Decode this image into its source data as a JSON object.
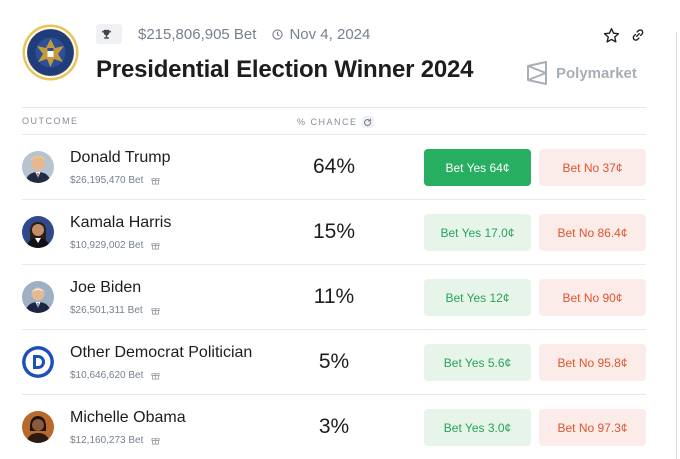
{
  "market": {
    "volume": "$215,806,905 Bet",
    "date": "Nov 4, 2024",
    "title": "Presidential Election Winner 2024",
    "brand": "Polymarket"
  },
  "columns": {
    "outcome": "OUTCOME",
    "chance": "% CHANCE"
  },
  "outcomes": [
    {
      "name": "Donald Trump",
      "volume": "$26,195,470 Bet",
      "chance": "64%",
      "yes": "Bet Yes 64¢",
      "no": "Bet No 37¢",
      "avatar": "trump-avatar"
    },
    {
      "name": "Kamala Harris",
      "volume": "$10,929,002 Bet",
      "chance": "15%",
      "yes": "Bet Yes 17.0¢",
      "no": "Bet No 86.4¢",
      "avatar": "harris-avatar"
    },
    {
      "name": "Joe Biden",
      "volume": "$26,501,311 Bet",
      "chance": "11%",
      "yes": "Bet Yes 12¢",
      "no": "Bet No 90¢",
      "avatar": "biden-avatar"
    },
    {
      "name": "Other Democrat Politician",
      "volume": "$10,646,620 Bet",
      "chance": "5%",
      "yes": "Bet Yes 5.6¢",
      "no": "Bet No 95.8¢",
      "avatar": "democrat-logo"
    },
    {
      "name": "Michelle Obama",
      "volume": "$12,160,273 Bet",
      "chance": "3%",
      "yes": "Bet Yes 3.0¢",
      "no": "Bet No 97.3¢",
      "avatar": "obama-avatar"
    }
  ],
  "colors": {
    "yes_primary": "#27ae60",
    "yes_light": "#e6f4ea",
    "no_light": "#fbece9",
    "no_text": "#e0542e"
  }
}
